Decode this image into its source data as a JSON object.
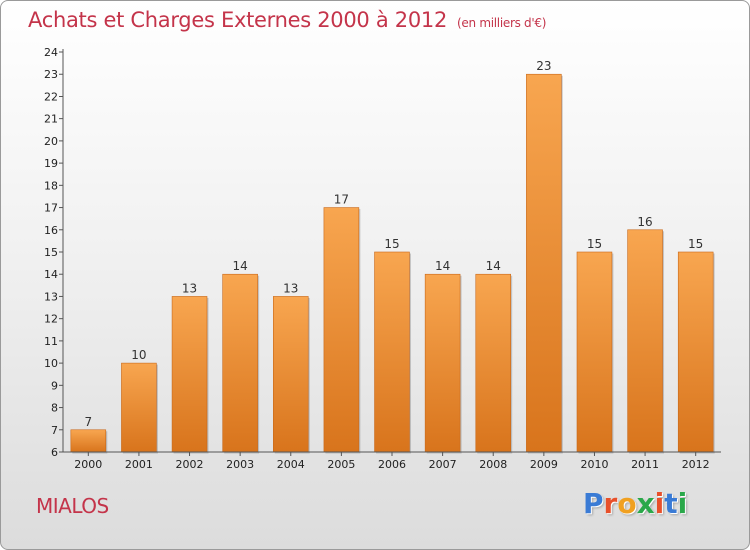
{
  "header": {
    "title": "Achats et Charges Externes 2000 à 2012",
    "unit": "(en milliers d'€)"
  },
  "footer": {
    "place": "MIALOS",
    "logo": "Proxiti"
  },
  "colors": {
    "accent": "#c4344a",
    "bar_top": "#f8a650",
    "bar_bottom": "#d8741c"
  },
  "chart_data": {
    "type": "bar",
    "categories": [
      "2000",
      "2001",
      "2002",
      "2003",
      "2004",
      "2005",
      "2006",
      "2007",
      "2008",
      "2009",
      "2010",
      "2011",
      "2012"
    ],
    "values": [
      7,
      10,
      13,
      14,
      13,
      17,
      15,
      14,
      14,
      23,
      15,
      16,
      15
    ],
    "ylim": [
      6,
      24
    ],
    "yticks": [
      6,
      7,
      8,
      9,
      10,
      11,
      12,
      13,
      14,
      15,
      16,
      17,
      18,
      19,
      20,
      21,
      22,
      23,
      24
    ],
    "grid": false,
    "data_labels": true
  }
}
